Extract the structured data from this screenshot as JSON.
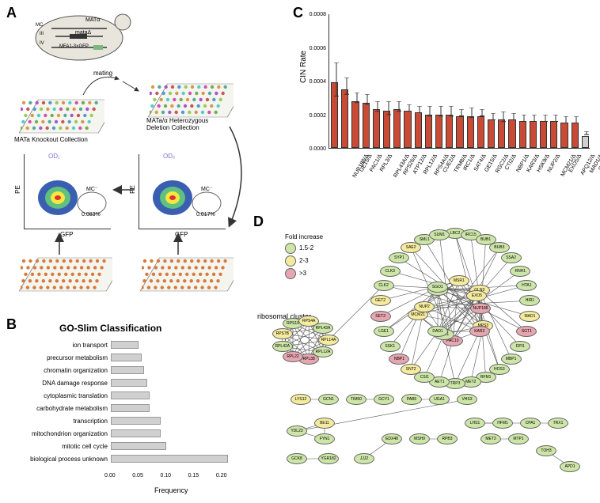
{
  "panelA": {
    "label": "A",
    "yeast_labels": {
      "mc": "MC",
      "mata": "MATα",
      "matd": "mataΔ",
      "mfa": "MFA1-3×GFP",
      "iii": "III",
      "iv": "IV"
    },
    "mating_label": "mating",
    "collection_a": "MATa Knockout Collection",
    "collection_het": "MATa/α Heterozygous\nDeletion Collection",
    "plot1": {
      "y_axis": "PE",
      "x_axis": "GFP",
      "od_label": "OD₁",
      "mc_label": "MC⁻",
      "mc_val": "0.083%"
    },
    "plot2": {
      "y_axis": "PE",
      "x_axis": "GFP",
      "od_label": "OD₀",
      "mc_label": "MC⁻",
      "mc_val": "0.017%"
    }
  },
  "panelB": {
    "label": "B",
    "title": "GO-Slim Classification",
    "x_axis": "Frequency",
    "xticks": [
      "0.00",
      "0.05",
      "0.10",
      "0.15",
      "0.20"
    ],
    "categories": [
      {
        "label": "ion transport",
        "value": 0.05
      },
      {
        "label": "precursor metabolism",
        "value": 0.055
      },
      {
        "label": "chromatin organization",
        "value": 0.06
      },
      {
        "label": "DNA damage response",
        "value": 0.065
      },
      {
        "label": "cytoplasmic translation",
        "value": 0.07
      },
      {
        "label": "carbohydrate metabolism",
        "value": 0.07
      },
      {
        "label": "transcription",
        "value": 0.09
      },
      {
        "label": "mitochondrion organization",
        "value": 0.09
      },
      {
        "label": "mitotic cell cycle",
        "value": 0.1
      },
      {
        "label": "biological process unknown",
        "value": 0.21
      }
    ],
    "xmax": 0.22,
    "bar_color": "#d0d0d0"
  },
  "panelC": {
    "label": "C",
    "y_axis": "CIN Rate",
    "ymax": 0.0008,
    "yticks": [
      "0.0000",
      "0.0002",
      "0.0004",
      "0.0006",
      "0.0008"
    ],
    "bars": [
      {
        "gene": "NUP188/Δ",
        "value": 0.00039,
        "err": 0.0001,
        "color": "#c94a35"
      },
      {
        "gene": "GE15/Δ",
        "value": 0.00035,
        "err": 5e-05,
        "color": "#c94a35"
      },
      {
        "gene": "PAC1/Δ",
        "value": 0.00028,
        "err": 3e-05,
        "color": "#c94a35"
      },
      {
        "gene": "RPL3/Δ",
        "value": 0.00027,
        "err": 3e-05,
        "color": "#c94a35"
      },
      {
        "gene": "RPL43A/Δ",
        "value": 0.00023,
        "err": 3e-05,
        "color": "#c94a35"
      },
      {
        "gene": "RPS26/Δ",
        "value": 0.00022,
        "err": 4e-05,
        "color": "#c94a35"
      },
      {
        "gene": "ATP12/Δ",
        "value": 0.00023,
        "err": 3e-05,
        "color": "#c94a35"
      },
      {
        "gene": "RPL12/Δ",
        "value": 0.00022,
        "err": 2e-05,
        "color": "#c94a35"
      },
      {
        "gene": "RPS4A/Δ",
        "value": 0.00021,
        "err": 2e-05,
        "color": "#c94a35"
      },
      {
        "gene": "CUE2/Δ",
        "value": 0.0002,
        "err": 3e-05,
        "color": "#c94a35"
      },
      {
        "gene": "TRM8/Δ",
        "value": 0.0002,
        "err": 3e-05,
        "color": "#c94a35"
      },
      {
        "gene": "IRC1/Δ",
        "value": 0.0002,
        "err": 3e-05,
        "color": "#c94a35"
      },
      {
        "gene": "SAT4/Δ",
        "value": 0.00019,
        "err": 2e-05,
        "color": "#c94a35"
      },
      {
        "gene": "GE15/Δ",
        "value": 0.00019,
        "err": 3e-05,
        "color": "#c94a35"
      },
      {
        "gene": "RGC2/Δ",
        "value": 0.00019,
        "err": 2e-05,
        "color": "#c94a35"
      },
      {
        "gene": "CTI2/Δ",
        "value": 0.00017,
        "err": 2e-05,
        "color": "#c94a35"
      },
      {
        "gene": "NBP1/Δ",
        "value": 0.00017,
        "err": 3e-05,
        "color": "#c94a35"
      },
      {
        "gene": "KAR3/Δ",
        "value": 0.00017,
        "err": 2e-05,
        "color": "#c94a35"
      },
      {
        "gene": "HSK9/Δ",
        "value": 0.00016,
        "err": 2e-05,
        "color": "#c94a35"
      },
      {
        "gene": "NUP2/Δ",
        "value": 0.00016,
        "err": 2e-05,
        "color": "#c94a35"
      },
      {
        "gene": "MCM21/Δ",
        "value": 0.00016,
        "err": 2e-05,
        "color": "#c94a35"
      },
      {
        "gene": "EXO5/Δ",
        "value": 0.00016,
        "err": 2e-05,
        "color": "#c94a35"
      },
      {
        "gene": "APQ12/Δ",
        "value": 0.00015,
        "err": 2e-05,
        "color": "#c94a35"
      },
      {
        "gene": "MAD1/Δ",
        "value": 0.00015,
        "err": 2e-05,
        "color": "#c94a35"
      },
      {
        "gene": "Control",
        "value": 7e-05,
        "err": 1e-05,
        "color": "#d0d0d0"
      }
    ]
  },
  "panelD": {
    "label": "D",
    "legend_title": "Fold increase",
    "legend": [
      {
        "label": "1.5-2",
        "color": "#cde6a8"
      },
      {
        "label": "2-3",
        "color": "#f5eb9e"
      },
      {
        "label": ">3",
        "color": "#e6a6b0"
      }
    ],
    "ribosomal_label": "ribosomal cluster",
    "colors": {
      "low": "#cde6a8",
      "mid": "#f5eb9e",
      "high": "#e6a6b0"
    },
    "ring_nodes": [
      {
        "name": "LBC2",
        "c": "low"
      },
      {
        "name": "IRC15",
        "c": "low"
      },
      {
        "name": "BUB1",
        "c": "low"
      },
      {
        "name": "BUB3",
        "c": "low"
      },
      {
        "name": "SSA2",
        "c": "low"
      },
      {
        "name": "RNH1",
        "c": "low"
      },
      {
        "name": "HTA1",
        "c": "low"
      },
      {
        "name": "HIR1",
        "c": "low"
      },
      {
        "name": "MAD1",
        "c": "mid"
      },
      {
        "name": "SGT1",
        "c": "high"
      },
      {
        "name": "DPI1",
        "c": "low"
      },
      {
        "name": "MBP1",
        "c": "low"
      },
      {
        "name": "HOS3",
        "c": "low"
      },
      {
        "name": "RFM1",
        "c": "low"
      },
      {
        "name": "MET2",
        "c": "low"
      },
      {
        "name": "TRP3",
        "c": "low"
      },
      {
        "name": "AET1",
        "c": "low"
      },
      {
        "name": "CSI1",
        "c": "low"
      },
      {
        "name": "SNT2",
        "c": "mid"
      },
      {
        "name": "NBP1",
        "c": "high"
      },
      {
        "name": "SSK1",
        "c": "low"
      },
      {
        "name": "LGE1",
        "c": "low"
      },
      {
        "name": "SET3",
        "c": "high"
      },
      {
        "name": "GET2",
        "c": "mid"
      },
      {
        "name": "CLK2",
        "c": "low"
      },
      {
        "name": "CLK3",
        "c": "low"
      },
      {
        "name": "SYP1",
        "c": "low"
      },
      {
        "name": "SAE2",
        "c": "mid"
      },
      {
        "name": "SML1",
        "c": "low"
      },
      {
        "name": "SUM1",
        "c": "low"
      }
    ],
    "inner_nodes": [
      {
        "name": "NUP188",
        "c": "high"
      },
      {
        "name": "MPS3",
        "c": "mid"
      },
      {
        "name": "KAR3",
        "c": "high"
      },
      {
        "name": "PAC10",
        "c": "high"
      },
      {
        "name": "CHL1",
        "c": "low"
      },
      {
        "name": "DAD1",
        "c": "low"
      },
      {
        "name": "MCM21",
        "c": "mid"
      },
      {
        "name": "NUP2",
        "c": "mid"
      },
      {
        "name": "CMP2",
        "c": "low"
      },
      {
        "name": "SGO1",
        "c": "low"
      },
      {
        "name": "MSR1",
        "c": "mid"
      },
      {
        "name": "GLN3",
        "c": "mid"
      },
      {
        "name": "EXO5",
        "c": "mid"
      }
    ],
    "ribo_nodes": [
      {
        "name": "RPL14A",
        "c": "mid"
      },
      {
        "name": "RPL12A",
        "c": "low"
      },
      {
        "name": "RPL38",
        "c": "high"
      },
      {
        "name": "RPL22",
        "c": "high"
      },
      {
        "name": "RPL42A",
        "c": "low"
      },
      {
        "name": "RPS7B",
        "c": "mid"
      },
      {
        "name": "RPS19",
        "c": "low"
      },
      {
        "name": "RPS4A",
        "c": "mid"
      },
      {
        "name": "RPL43A",
        "c": "low"
      }
    ],
    "bottom_nodes": [
      {
        "name": "LYS12",
        "c": "mid"
      },
      {
        "name": "GCN1",
        "c": "low"
      },
      {
        "name": "TIM50",
        "c": "low"
      },
      {
        "name": "GCY1",
        "c": "low"
      },
      {
        "name": "PAB5",
        "c": "low"
      },
      {
        "name": "UGA1",
        "c": "low"
      },
      {
        "name": "VHS3",
        "c": "low"
      },
      {
        "name": "YDL23",
        "c": "low"
      },
      {
        "name": "BE11",
        "c": "mid"
      },
      {
        "name": "FYN1",
        "c": "low"
      },
      {
        "name": "GCK8",
        "c": "low"
      },
      {
        "name": "YGR182",
        "c": "low"
      },
      {
        "name": "JJJ2",
        "c": "low"
      },
      {
        "name": "EDX48",
        "c": "low"
      },
      {
        "name": "MSH9",
        "c": "low"
      },
      {
        "name": "RPB3",
        "c": "low"
      },
      {
        "name": "LHS1",
        "c": "low"
      },
      {
        "name": "HFM1",
        "c": "low"
      },
      {
        "name": "CPA1",
        "c": "low"
      },
      {
        "name": "TRX1",
        "c": "low"
      },
      {
        "name": "MET3",
        "c": "low"
      },
      {
        "name": "MTP1",
        "c": "low"
      },
      {
        "name": "TOH3",
        "c": "low"
      },
      {
        "name": "APD1",
        "c": "low"
      }
    ]
  }
}
